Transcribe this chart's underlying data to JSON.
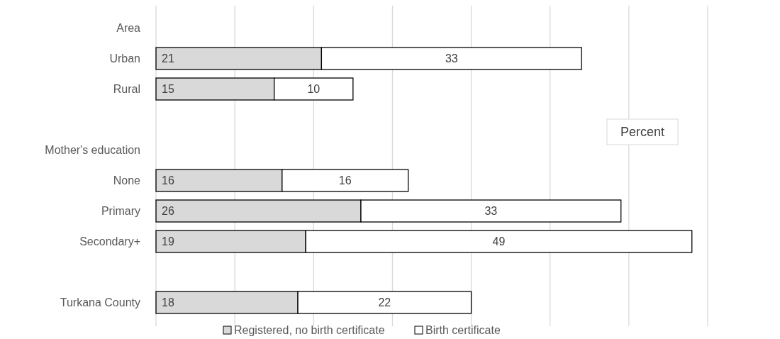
{
  "chart_data": {
    "type": "bar",
    "orientation": "horizontal",
    "stacked": true,
    "data_labels": true,
    "categories": [
      "Area",
      "Urban",
      "Rural",
      null,
      "Mother's education",
      "None",
      "Primary",
      "Secondary+",
      null,
      "Turkana County"
    ],
    "series": [
      {
        "name": "Registered, no birth certificate",
        "color": "#d9d9d9",
        "values": [
          null,
          21,
          15,
          null,
          null,
          16,
          26,
          19,
          null,
          18
        ]
      },
      {
        "name": "Birth certificate",
        "color": "#ffffff",
        "values": [
          null,
          33,
          10,
          null,
          null,
          16,
          33,
          49,
          null,
          22
        ]
      }
    ],
    "xlim": [
      0,
      70
    ],
    "xticks": [
      {
        "value": 0,
        "label": null
      },
      {
        "value": 10,
        "label": null
      },
      {
        "value": 20,
        "label": null
      },
      {
        "value": 30,
        "label": null
      },
      {
        "value": 40,
        "label": null
      },
      {
        "value": 50,
        "label": null
      },
      {
        "value": 60,
        "label": null
      },
      {
        "value": 70,
        "label": null
      }
    ],
    "tick_labels": "y",
    "grid": "x",
    "legend": "bottom",
    "annotations": [
      "Percent"
    ]
  }
}
